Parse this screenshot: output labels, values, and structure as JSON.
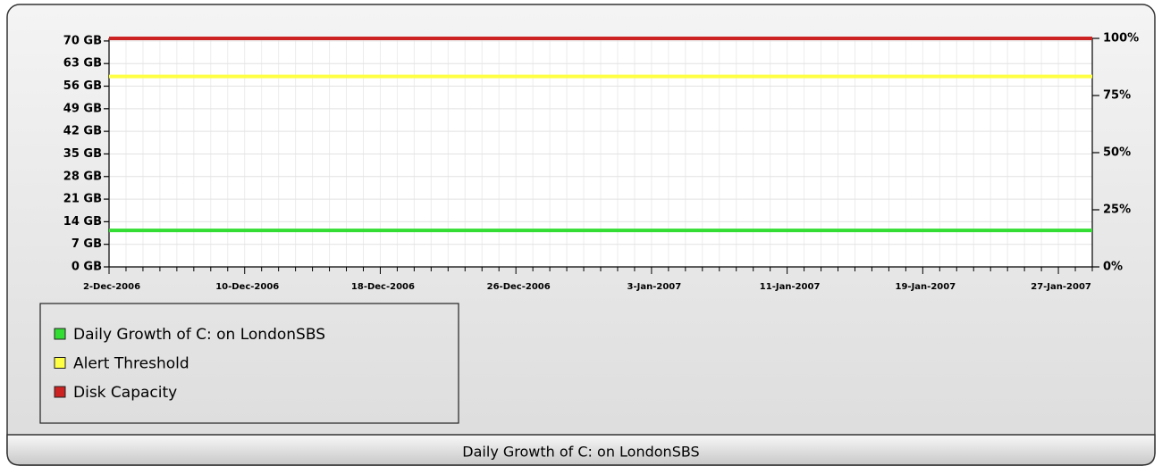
{
  "chart_data": {
    "type": "line",
    "title": "Daily Growth of C: on LondonSBS",
    "categories": [
      "2-Dec-2006",
      null,
      null,
      null,
      null,
      null,
      null,
      null,
      "10-Dec-2006",
      null,
      null,
      null,
      null,
      null,
      null,
      null,
      "18-Dec-2006",
      null,
      null,
      null,
      null,
      null,
      null,
      null,
      "26-Dec-2006",
      null,
      null,
      null,
      null,
      null,
      null,
      null,
      "3-Jan-2007",
      null,
      null,
      null,
      null,
      null,
      null,
      null,
      "11-Jan-2007",
      null,
      null,
      null,
      null,
      null,
      null,
      null,
      "19-Jan-2007",
      null,
      null,
      null,
      null,
      null,
      null,
      null,
      "27-Jan-2007",
      null,
      null
    ],
    "series": [
      {
        "name": "Daily Growth of C: on LondonSBS",
        "color": "#33dd33",
        "values": [
          11.3,
          11.3,
          11.3,
          11.3,
          11.3,
          11.3,
          11.3,
          11.3,
          11.3,
          11.3,
          11.3,
          11.3,
          11.3,
          11.3,
          11.3,
          11.3,
          11.3,
          11.3,
          11.3,
          11.3,
          11.3,
          11.3,
          11.3,
          11.3,
          11.3,
          11.3,
          11.3,
          11.3,
          11.3,
          11.3,
          11.3,
          11.3,
          11.3,
          11.3,
          11.3,
          11.3,
          11.3,
          11.3,
          11.3,
          11.3,
          11.3,
          11.3,
          11.3,
          11.3,
          11.3,
          11.3,
          11.3,
          11.3,
          11.3,
          11.3,
          11.3,
          11.3,
          11.3,
          11.3,
          11.3,
          11.3,
          11.3,
          11.3,
          11.3
        ]
      },
      {
        "name": "Alert Threshold",
        "color": "#ffff44",
        "values": [
          59,
          59,
          59,
          59,
          59,
          59,
          59,
          59,
          59,
          59,
          59,
          59,
          59,
          59,
          59,
          59,
          59,
          59,
          59,
          59,
          59,
          59,
          59,
          59,
          59,
          59,
          59,
          59,
          59,
          59,
          59,
          59,
          59,
          59,
          59,
          59,
          59,
          59,
          59,
          59,
          59,
          59,
          59,
          59,
          59,
          59,
          59,
          59,
          59,
          59,
          59,
          59,
          59,
          59,
          59,
          59,
          59,
          59,
          59
        ]
      },
      {
        "name": "Disk Capacity",
        "color": "#cc2222",
        "values": [
          70.8,
          70.8,
          70.8,
          70.8,
          70.8,
          70.8,
          70.8,
          70.8,
          70.8,
          70.8,
          70.8,
          70.8,
          70.8,
          70.8,
          70.8,
          70.8,
          70.8,
          70.8,
          70.8,
          70.8,
          70.8,
          70.8,
          70.8,
          70.8,
          70.8,
          70.8,
          70.8,
          70.8,
          70.8,
          70.8,
          70.8,
          70.8,
          70.8,
          70.8,
          70.8,
          70.8,
          70.8,
          70.8,
          70.8,
          70.8,
          70.8,
          70.8,
          70.8,
          70.8,
          70.8,
          70.8,
          70.8,
          70.8,
          70.8,
          70.8,
          70.8,
          70.8,
          70.8,
          70.8,
          70.8,
          70.8,
          70.8,
          70.8,
          70.8
        ]
      }
    ],
    "ylim": [
      0,
      70.8
    ],
    "yticks": [
      {
        "value": 0,
        "label": "0 GB"
      },
      {
        "value": 7,
        "label": "7 GB"
      },
      {
        "value": 14,
        "label": "14 GB"
      },
      {
        "value": 21,
        "label": "21 GB"
      },
      {
        "value": 28,
        "label": "28 GB"
      },
      {
        "value": 35,
        "label": "35 GB"
      },
      {
        "value": 42,
        "label": "42 GB"
      },
      {
        "value": 49,
        "label": "49 GB"
      },
      {
        "value": 56,
        "label": "56 GB"
      },
      {
        "value": 63,
        "label": "63 GB"
      },
      {
        "value": 70,
        "label": "70 GB"
      }
    ],
    "y2lim": [
      0,
      100
    ],
    "y2ticks": [
      {
        "value": 0,
        "label": "0%"
      },
      {
        "value": 25,
        "label": "25%"
      },
      {
        "value": 50,
        "label": "50%"
      },
      {
        "value": 75,
        "label": "75%"
      },
      {
        "value": 100,
        "label": "100%"
      }
    ],
    "grid": true
  }
}
